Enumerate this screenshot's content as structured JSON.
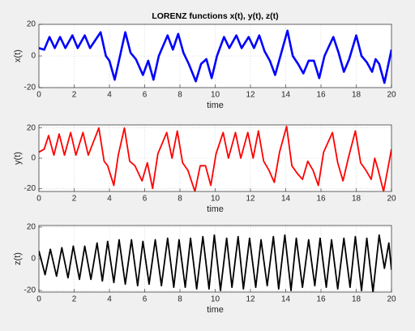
{
  "chart_data": [
    {
      "type": "line",
      "title": "LORENZ functions x(t), y(t), z(t)",
      "x_label": "time",
      "y_label": "x(t)",
      "xlim": [
        0,
        20
      ],
      "xticks": [
        0,
        2,
        4,
        6,
        8,
        10,
        12,
        14,
        16,
        18,
        20
      ],
      "ylim": [
        -20,
        20
      ],
      "yticks": [
        -20,
        0,
        20
      ],
      "grid": true,
      "series": [
        {
          "name": "x(t)",
          "color": "#0000ff",
          "x": [
            0,
            0.3,
            0.6,
            0.9,
            1.2,
            1.5,
            1.9,
            2.2,
            2.6,
            2.9,
            3.5,
            3.8,
            4.0,
            4.3,
            4.6,
            4.9,
            5.2,
            5.5,
            5.9,
            6.2,
            6.5,
            6.8,
            7.3,
            7.6,
            7.9,
            8.2,
            8.5,
            8.9,
            9.2,
            9.5,
            9.8,
            10.1,
            10.5,
            10.8,
            11.2,
            11.5,
            11.9,
            12.2,
            12.5,
            12.8,
            13.1,
            13.4,
            13.7,
            14.1,
            14.4,
            14.7,
            15.0,
            15.3,
            15.6,
            15.9,
            16.2,
            16.7,
            17.0,
            17.3,
            17.6,
            18.0,
            18.3,
            18.6,
            18.9,
            19.1,
            19.3,
            19.6,
            20
          ],
          "values": [
            5,
            4,
            12,
            5,
            12,
            5,
            13,
            5,
            13,
            5,
            15,
            0,
            -3,
            -15,
            0,
            15,
            2,
            -2,
            -12,
            -3,
            -15,
            0,
            13,
            4,
            14,
            2,
            -5,
            -16,
            -5,
            -2,
            -14,
            0,
            12,
            5,
            13,
            5,
            12,
            5,
            13,
            3,
            -3,
            -12,
            0,
            16,
            0,
            -5,
            -11,
            -3,
            -3,
            -14,
            0,
            12,
            2,
            -10,
            -2,
            13,
            0,
            -4,
            -10,
            -2,
            -5,
            -17,
            4
          ]
        }
      ]
    },
    {
      "type": "line",
      "x_label": "time",
      "y_label": "y(t)",
      "xlim": [
        0,
        20
      ],
      "xticks": [
        0,
        2,
        4,
        6,
        8,
        10,
        12,
        14,
        16,
        18,
        20
      ],
      "ylim": [
        -22,
        22
      ],
      "yticks": [
        -20,
        0,
        20
      ],
      "grid": true,
      "series": [
        {
          "name": "y(t)",
          "color": "#ff0000",
          "x": [
            0,
            0.3,
            0.55,
            0.85,
            1.15,
            1.45,
            1.8,
            2.1,
            2.5,
            2.8,
            3.4,
            3.7,
            3.9,
            4.25,
            4.5,
            4.85,
            5.15,
            5.45,
            5.85,
            6.15,
            6.45,
            6.75,
            7.25,
            7.55,
            7.85,
            8.15,
            8.45,
            8.85,
            9.15,
            9.45,
            9.75,
            10.05,
            10.45,
            10.75,
            11.15,
            11.45,
            11.85,
            12.15,
            12.45,
            12.75,
            13.05,
            13.35,
            13.65,
            14.05,
            14.35,
            14.65,
            14.95,
            15.25,
            15.55,
            15.85,
            16.15,
            16.65,
            16.95,
            17.25,
            17.55,
            17.95,
            18.25,
            18.55,
            18.85,
            19.05,
            19.25,
            19.55,
            20
          ],
          "values": [
            4,
            6,
            15,
            2,
            16,
            2,
            17,
            2,
            17,
            2,
            20,
            -2,
            -5,
            -18,
            2,
            20,
            -2,
            -5,
            -15,
            -3,
            -20,
            3,
            17,
            0,
            18,
            -3,
            -8,
            -22,
            -5,
            -5,
            -18,
            3,
            17,
            0,
            17,
            0,
            17,
            0,
            18,
            -2,
            -8,
            -16,
            4,
            21,
            -5,
            -10,
            -14,
            -2,
            -8,
            -18,
            4,
            17,
            -3,
            -15,
            0,
            18,
            -3,
            -8,
            -14,
            0,
            -8,
            -22,
            6
          ]
        }
      ]
    },
    {
      "type": "line",
      "x_label": "time",
      "y_label": "z(t)",
      "xlim": [
        0,
        20
      ],
      "xticks": [
        0,
        2,
        4,
        6,
        8,
        10,
        12,
        14,
        16,
        18,
        20
      ],
      "ylim": [
        -21,
        21
      ],
      "yticks": [
        -20,
        0,
        20
      ],
      "grid": true,
      "series": [
        {
          "name": "z(t)",
          "color": "#000000",
          "x": [
            0,
            0.35,
            0.65,
            1.0,
            1.3,
            1.65,
            1.95,
            2.3,
            2.6,
            2.95,
            3.3,
            3.6,
            3.9,
            4.25,
            4.55,
            4.9,
            5.25,
            5.6,
            5.9,
            6.25,
            6.6,
            6.95,
            7.3,
            7.65,
            7.95,
            8.3,
            8.6,
            8.95,
            9.3,
            9.65,
            9.95,
            10.3,
            10.65,
            10.95,
            11.3,
            11.6,
            11.95,
            12.3,
            12.6,
            12.95,
            13.3,
            13.6,
            13.95,
            14.3,
            14.6,
            14.95,
            15.3,
            15.65,
            15.95,
            16.3,
            16.6,
            16.95,
            17.3,
            17.65,
            17.95,
            18.3,
            18.6,
            18.95,
            19.3,
            19.6,
            19.85,
            20
          ],
          "values": [
            5,
            -10,
            6,
            -11,
            7,
            -12,
            8,
            -13,
            8,
            -13,
            10,
            -14,
            11,
            -15,
            12,
            -16,
            12,
            -17,
            11,
            -16,
            12,
            -17,
            13,
            -18,
            12,
            -18,
            13,
            -19,
            14,
            -19,
            15,
            -20,
            13,
            -18,
            14,
            -19,
            13,
            -18,
            12,
            -17,
            14,
            -19,
            15,
            -20,
            13,
            -18,
            12,
            -17,
            13,
            -18,
            12,
            -19,
            13,
            -18,
            14,
            -20,
            13,
            -21,
            15,
            -6,
            10,
            -7
          ]
        }
      ]
    }
  ]
}
